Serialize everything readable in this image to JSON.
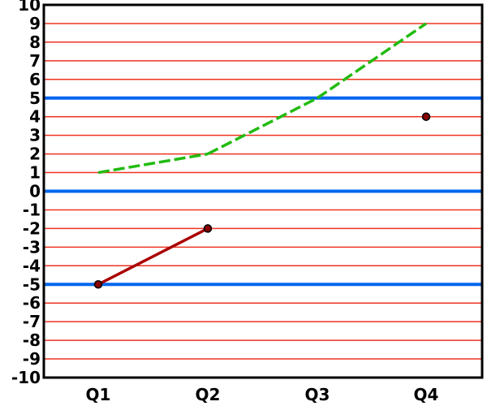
{
  "chart_data": {
    "type": "line",
    "categories": [
      "Q1",
      "Q2",
      "Q3",
      "Q4"
    ],
    "ylim": [
      -10,
      10
    ],
    "y_ticks": [
      10,
      9,
      8,
      7,
      6,
      5,
      4,
      3,
      2,
      1,
      0,
      -1,
      -2,
      -3,
      -4,
      -5,
      -6,
      -7,
      -8,
      -9,
      -10
    ],
    "grid": true,
    "major_grid_values": [
      5,
      0,
      -5
    ],
    "series": [
      {
        "values": [
          -5,
          -2,
          null,
          4
        ],
        "color": "#aa0000",
        "style": "solid",
        "markers": true
      },
      {
        "values": [
          1,
          2,
          5,
          9
        ],
        "color": "#22bb11",
        "style": "dashed",
        "markers": false
      }
    ],
    "colors": {
      "minor_grid": "#ee3322",
      "major_grid": "#0066ee",
      "axis": "#000000",
      "marker_fill": "#880000"
    }
  }
}
